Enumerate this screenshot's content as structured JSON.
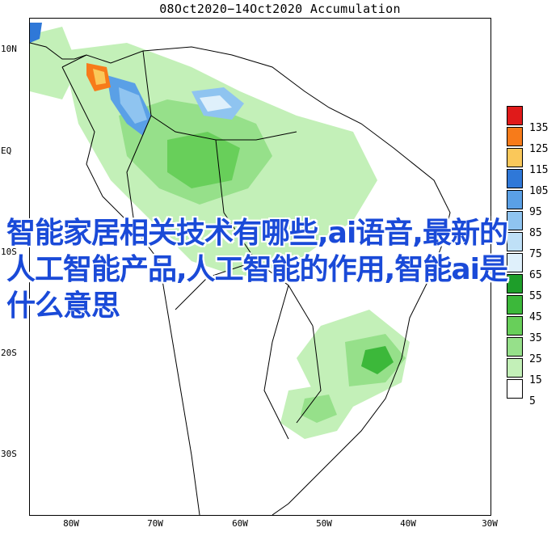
{
  "map": {
    "title": "08Oct2020−14Oct2020 Accumulation",
    "lat_labels": [
      "10N",
      "EQ",
      "10S",
      "20S",
      "30S"
    ],
    "lon_labels": [
      "80W",
      "70W",
      "60W",
      "50W",
      "40W",
      "30W"
    ]
  },
  "legend": {
    "values": [
      "135",
      "125",
      "115",
      "105",
      "95",
      "85",
      "75",
      "65",
      "55",
      "45",
      "35",
      "25",
      "15",
      "5"
    ],
    "colors": [
      "#e01a1a",
      "#f77b1a",
      "#fac85a",
      "#2f78d8",
      "#5aa0e6",
      "#8fc4f0",
      "#bfe0f7",
      "#dff0fb",
      "#1e9e2a",
      "#3cb83a",
      "#68cf5a",
      "#96e08a",
      "#c3f0b8",
      "#ffffff"
    ]
  },
  "overlay": {
    "text": "智能家居相关技术有哪些,ai语音,最新的人工智能产品,人工智能的作用,智能ai是什么意思"
  }
}
